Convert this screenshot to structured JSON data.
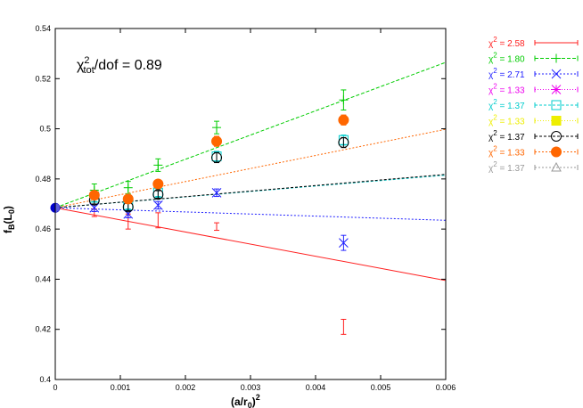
{
  "chart_data": {
    "type": "scatter",
    "annotation": {
      "chi": "χ",
      "sup": "2",
      "sub": "tot",
      "rest": "/dof = 0.89"
    },
    "xlabel": {
      "base": "(a/r",
      "sub": "0",
      "close": ")",
      "sup": "2"
    },
    "ylabel": {
      "base": "f",
      "sub1": "B",
      "mid": "(L",
      "sub2": "0",
      "close": ")"
    },
    "xlim": [
      0,
      0.006
    ],
    "ylim": [
      0.4,
      0.54
    ],
    "xticks": [
      0,
      0.001,
      0.002,
      0.003,
      0.004,
      0.005,
      0.006
    ],
    "xtick_labels": [
      "0",
      "0.001",
      "0.002",
      "0.003",
      "0.004",
      "0.005",
      "0.006"
    ],
    "yticks": [
      0.4,
      0.42,
      0.44,
      0.46,
      0.48,
      0.5,
      0.52,
      0.54
    ],
    "ytick_labels": [
      "0.4",
      "0.42",
      "0.44",
      "0.46",
      "0.48",
      "0.5",
      "0.52",
      "0.54"
    ],
    "continuum_point": {
      "x": 0,
      "y": 0.4685,
      "color": "#0000cc"
    },
    "legend_position": "outside-right",
    "series": [
      {
        "chi_label": "χ",
        "chi_sup": "2",
        "label": " = 2.58",
        "color": "#ff2020",
        "marker": "errorbar",
        "dash": "none",
        "points": [
          {
            "x": 0.0006,
            "y": 0.4665,
            "err": 0.0015
          },
          {
            "x": 0.00112,
            "y": 0.463,
            "err": 0.003
          },
          {
            "x": 0.00158,
            "y": 0.4635,
            "err": 0.003
          },
          {
            "x": 0.00248,
            "y": 0.461,
            "err": 0.0015
          },
          {
            "x": 0.00443,
            "y": 0.421,
            "err": 0.003
          }
        ],
        "fit": {
          "x0": 0,
          "y0": 0.4685,
          "x1": 0.006,
          "y1": 0.4395
        }
      },
      {
        "chi_label": "χ",
        "chi_sup": "2",
        "label": " = 1.80",
        "color": "#00cc00",
        "marker": "plus",
        "dash": "4,2",
        "points": [
          {
            "x": 0.0006,
            "y": 0.4755,
            "err": 0.0025
          },
          {
            "x": 0.00112,
            "y": 0.4765,
            "err": 0.0025
          },
          {
            "x": 0.00158,
            "y": 0.4855,
            "err": 0.0025
          },
          {
            "x": 0.00248,
            "y": 0.5005,
            "err": 0.0025
          },
          {
            "x": 0.00443,
            "y": 0.5115,
            "err": 0.004
          }
        ],
        "fit": {
          "x0": 0,
          "y0": 0.4685,
          "x1": 0.006,
          "y1": 0.5265
        }
      },
      {
        "chi_label": "χ",
        "chi_sup": "2",
        "label": " = 2.71",
        "color": "#2020ff",
        "marker": "cross",
        "dash": "2,2",
        "points": [
          {
            "x": 0.0006,
            "y": 0.4685,
            "err": 0.0015
          },
          {
            "x": 0.00112,
            "y": 0.466,
            "err": 0.0015
          },
          {
            "x": 0.00158,
            "y": 0.4695,
            "err": 0.0015
          },
          {
            "x": 0.00248,
            "y": 0.4745,
            "err": 0.0015
          },
          {
            "x": 0.00443,
            "y": 0.4545,
            "err": 0.003
          }
        ],
        "fit": {
          "x0": 0,
          "y0": 0.4685,
          "x1": 0.006,
          "y1": 0.4635
        }
      },
      {
        "chi_label": "χ",
        "chi_sup": "2",
        "label": " = 1.33",
        "color": "#ee00ee",
        "marker": "star",
        "dash": "1,2",
        "points": [],
        "fit": null
      },
      {
        "chi_label": "χ",
        "chi_sup": "2",
        "label": " = 1.37",
        "color": "#00cccc",
        "marker": "square-open",
        "dash": "3,2",
        "points": [
          {
            "x": 0.0006,
            "y": 0.4725,
            "err": 0.0015
          },
          {
            "x": 0.00112,
            "y": 0.4695,
            "err": 0.0015
          },
          {
            "x": 0.00158,
            "y": 0.4745,
            "err": 0.0015
          },
          {
            "x": 0.00248,
            "y": 0.489,
            "err": 0.002
          },
          {
            "x": 0.00443,
            "y": 0.4955,
            "err": 0.002
          }
        ],
        "fit": {
          "x0": 0,
          "y0": 0.4685,
          "x1": 0.006,
          "y1": 0.4815
        }
      },
      {
        "chi_label": "χ",
        "chi_sup": "2",
        "label": " = 1.33",
        "color": "#eeee00",
        "marker": "square-filled",
        "dash": "1,2",
        "points": [],
        "fit": null
      },
      {
        "chi_label": "χ",
        "chi_sup": "2",
        "label": " = 1.37",
        "color": "#000000",
        "marker": "circle-open",
        "dash": "3,2",
        "points": [
          {
            "x": 0.0006,
            "y": 0.4715,
            "err": 0.0015
          },
          {
            "x": 0.00112,
            "y": 0.4688,
            "err": 0.0015
          },
          {
            "x": 0.00158,
            "y": 0.4738,
            "err": 0.0015
          },
          {
            "x": 0.00248,
            "y": 0.4885,
            "err": 0.002
          },
          {
            "x": 0.00443,
            "y": 0.4945,
            "err": 0.002
          }
        ],
        "fit": {
          "x0": 0,
          "y0": 0.4685,
          "x1": 0.006,
          "y1": 0.4818
        }
      },
      {
        "chi_label": "χ",
        "chi_sup": "2",
        "label": " = 1.33",
        "color": "#ff6600",
        "marker": "circle-filled",
        "dash": "2,2",
        "points": [
          {
            "x": 0.0006,
            "y": 0.4735,
            "err": 0.0015
          },
          {
            "x": 0.00112,
            "y": 0.472,
            "err": 0.0015
          },
          {
            "x": 0.00158,
            "y": 0.478,
            "err": 0.0015
          },
          {
            "x": 0.00248,
            "y": 0.495,
            "err": 0.002
          },
          {
            "x": 0.00443,
            "y": 0.5035,
            "err": 0.002
          }
        ],
        "fit": {
          "x0": 0,
          "y0": 0.4685,
          "x1": 0.006,
          "y1": 0.4998
        }
      },
      {
        "chi_label": "χ",
        "chi_sup": "2",
        "label": " = 1.37",
        "color": "#999999",
        "marker": "triangle-open",
        "dash": "2,2",
        "points": [],
        "fit": null
      }
    ]
  }
}
